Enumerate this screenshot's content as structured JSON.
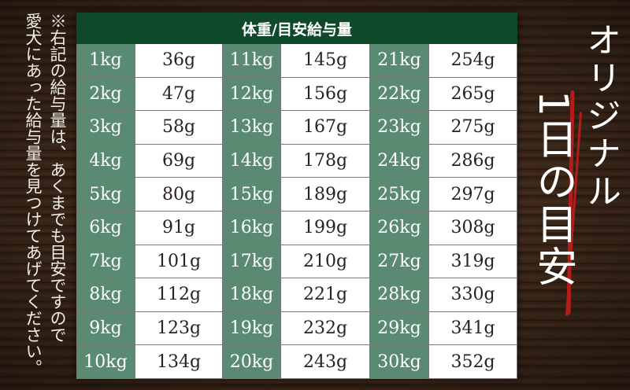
{
  "note": {
    "line1": "※右記の給与量は、あくまでも目安ですので",
    "line2": "愛犬にあった給与量を見つけてあげてください。"
  },
  "table": {
    "header": "体重/目安給与量",
    "rows": [
      [
        "1kg",
        "36g",
        "11kg",
        "145g",
        "21kg",
        "254g"
      ],
      [
        "2kg",
        "47g",
        "12kg",
        "156g",
        "22kg",
        "265g"
      ],
      [
        "3kg",
        "58g",
        "13kg",
        "167g",
        "23kg",
        "275g"
      ],
      [
        "4kg",
        "69g",
        "14kg",
        "178g",
        "24kg",
        "286g"
      ],
      [
        "5kg",
        "80g",
        "15kg",
        "189g",
        "25kg",
        "297g"
      ],
      [
        "6kg",
        "91g",
        "16kg",
        "199g",
        "26kg",
        "308g"
      ],
      [
        "7kg",
        "101g",
        "17kg",
        "210g",
        "27kg",
        "319g"
      ],
      [
        "8kg",
        "112g",
        "18kg",
        "221g",
        "28kg",
        "330g"
      ],
      [
        "9kg",
        "123g",
        "19kg",
        "232g",
        "29kg",
        "341g"
      ],
      [
        "10kg",
        "134g",
        "20kg",
        "243g",
        "30kg",
        "352g"
      ]
    ]
  },
  "title": {
    "line1": "オリジナル",
    "line2": "1日の目安"
  },
  "colors": {
    "header": "#0e4a2a",
    "weight_cell": "#5a8a72",
    "accent_line": "#b51c1c"
  }
}
